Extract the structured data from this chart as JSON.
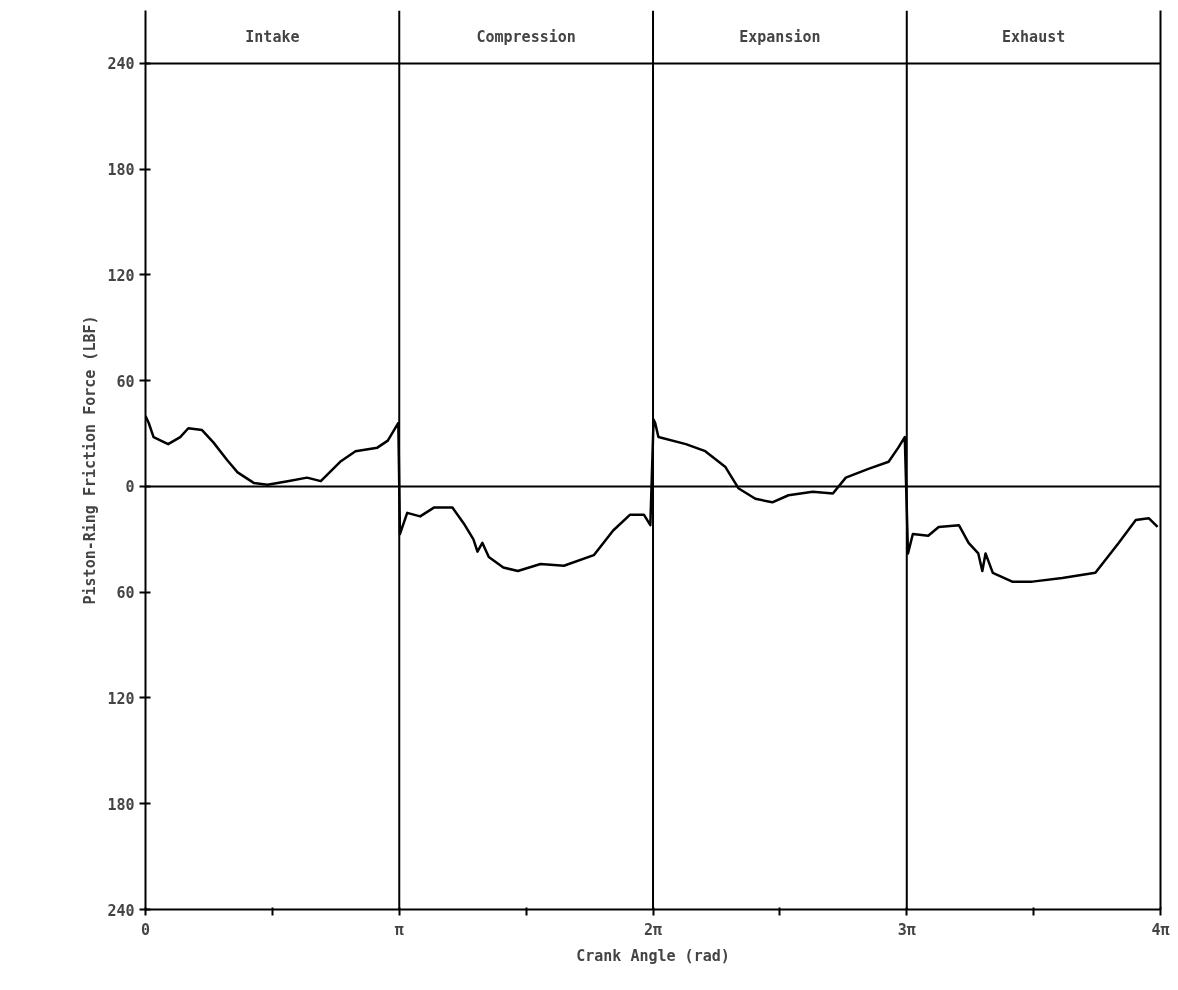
{
  "chart_data": {
    "type": "line",
    "xlabel": "Crank Angle (rad)",
    "ylabel": "Piston-Ring Friction Force (LBF)",
    "xlim": [
      0,
      12.566
    ],
    "ylim": [
      -240,
      270
    ],
    "xticks": [
      0,
      {
        "value": 1.5708,
        "label": null
      },
      {
        "value": 3.1416,
        "label": "π"
      },
      {
        "value": 4.7124,
        "label": null
      },
      {
        "value": 6.2832,
        "label": "2π"
      },
      {
        "value": 7.854,
        "label": null
      },
      {
        "value": 9.4248,
        "label": "3π"
      },
      {
        "value": 10.9956,
        "label": null
      },
      {
        "value": 12.566,
        "label": "4π"
      }
    ],
    "yticks": [
      240,
      180,
      120,
      60,
      0,
      {
        "value": -60,
        "label": "60"
      },
      {
        "value": -120,
        "label": "120"
      },
      {
        "value": -180,
        "label": "180"
      },
      {
        "value": -240,
        "label": "240"
      }
    ],
    "series": [
      {
        "color": "#000000",
        "x": [
          0.0,
          0.04,
          0.1,
          0.28,
          0.43,
          0.53,
          0.7,
          0.84,
          1.01,
          1.14,
          1.34,
          1.51,
          1.76,
          2.0,
          2.17,
          2.41,
          2.6,
          2.87,
          3.0,
          3.13,
          3.15,
          3.24,
          3.4,
          3.57,
          3.8,
          3.94,
          4.06,
          4.11,
          4.17,
          4.25,
          4.43,
          4.61,
          4.89,
          5.18,
          5.55,
          5.79,
          6.0,
          6.17,
          6.25,
          6.29,
          6.31,
          6.35,
          6.69,
          6.93,
          7.18,
          7.34,
          7.55,
          7.76,
          7.96,
          8.26,
          8.51,
          8.67,
          8.95,
          9.2,
          9.32,
          9.4,
          9.44,
          9.5,
          9.69,
          9.82,
          10.07,
          10.19,
          10.31,
          10.36,
          10.4,
          10.49,
          10.73,
          10.98,
          11.35,
          11.76,
          12.05,
          12.26,
          12.42,
          12.53
        ],
        "values": [
          40,
          36,
          28,
          24,
          28,
          33,
          32,
          25,
          15,
          8,
          2,
          1,
          3,
          5,
          3,
          14,
          20,
          22,
          26,
          36,
          -27,
          -15,
          -17,
          -12,
          -12,
          -21,
          -30,
          -37,
          -32,
          -40,
          -46,
          -48,
          -44,
          -45,
          -39,
          -25,
          -16,
          -16,
          -22,
          38,
          36,
          28,
          24,
          20,
          11,
          -1,
          -7,
          -9,
          -5,
          -3,
          -4,
          5,
          10,
          14,
          22,
          28,
          -38,
          -27,
          -28,
          -23,
          -22,
          -32,
          -38,
          -48,
          -38,
          -49,
          -54,
          -54,
          -52,
          -49,
          -32,
          -19,
          -18,
          -23
        ]
      }
    ],
    "ref_lines": [
      {
        "axis": "y",
        "value": 0,
        "label": null,
        "color": "#000000"
      },
      {
        "axis": "y",
        "value": 240,
        "label": null,
        "color": "#000000"
      },
      {
        "axis": "x",
        "value": 3.1416,
        "label": null,
        "color": "#000000"
      },
      {
        "axis": "x",
        "value": 6.2832,
        "label": null,
        "color": "#000000"
      },
      {
        "axis": "x",
        "value": 9.4248,
        "label": null,
        "color": "#000000"
      }
    ],
    "annotations": [
      "Intake",
      "Compression",
      "Expansion",
      "Exhaust"
    ],
    "grid": false,
    "marker": "none",
    "line_style": "solid"
  }
}
